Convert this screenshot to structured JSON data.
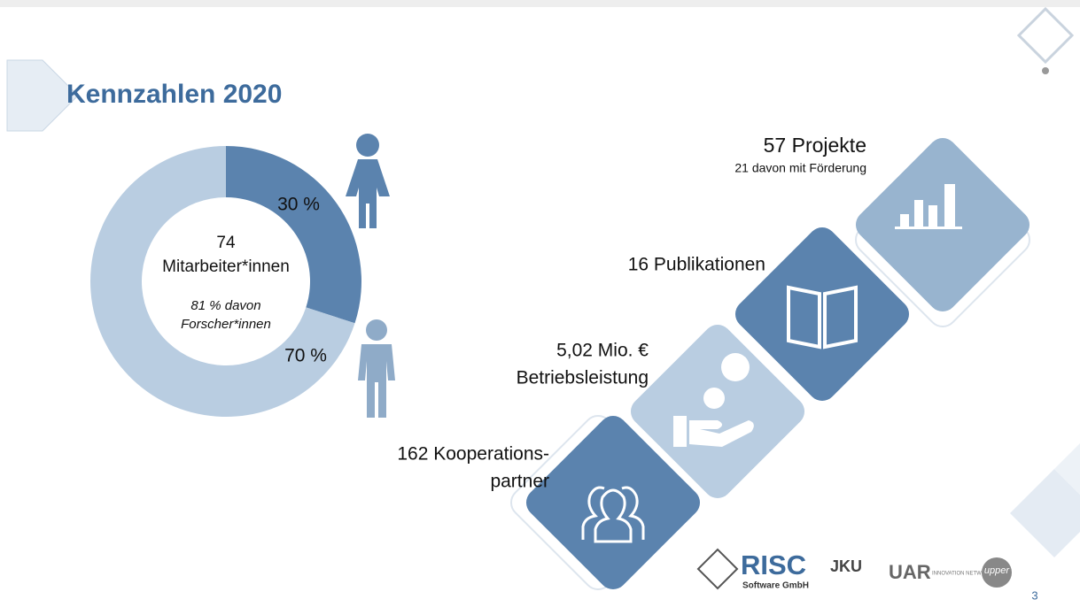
{
  "title": "Kennzahlen 2020",
  "chart_data": {
    "type": "pie",
    "donut": true,
    "categories": [
      null,
      null
    ],
    "values": [
      30,
      70
    ],
    "value_labels": [
      "30 %",
      "70 %"
    ],
    "colors": [
      "#5b83ae",
      "#b9cde1"
    ],
    "annotations": [
      "74",
      "Mitarbeiter*innen",
      "81 % davon",
      "Forscher*innen"
    ]
  },
  "stats": [
    {
      "lines": [
        "57 Projekte"
      ],
      "note": "21 davon mit Förderung"
    },
    {
      "lines": [
        "16 Publikationen"
      ]
    },
    {
      "lines": [
        "5,02 Mio. €",
        "Betriebsleistung"
      ]
    },
    {
      "lines": [
        "162 Kooperations-",
        "partner"
      ]
    }
  ],
  "footer": {
    "logo": "RISC",
    "logo_sub": "Software GmbH",
    "partner1": "JKU",
    "partner2": "UAR",
    "partner2_sub": "INNOVATION NETWORK",
    "partner3": "upper",
    "page": "3"
  }
}
